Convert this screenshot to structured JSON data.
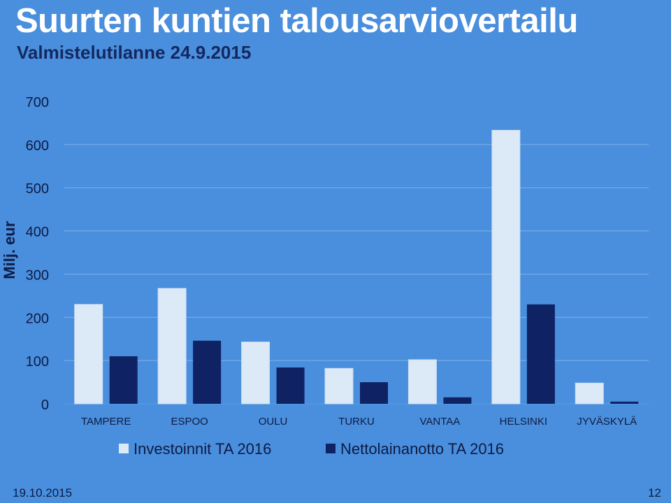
{
  "header": {
    "title": "Suurten kuntien talousarviovertailu",
    "subtitle": "Valmistelutilanne 24.9.2015"
  },
  "footer": {
    "date": "19.10.2015",
    "page": "12"
  },
  "colors": {
    "background": "#4A8FDD",
    "investointi": "#DCE9F7",
    "nettolaina": "#0F2263",
    "gridline": "#7FB0E6",
    "title": "#FFFFFF",
    "subtitle": "#14285F",
    "axis_text": "#0D1B45"
  },
  "chart_data": {
    "type": "bar",
    "categories": [
      "TAMPERE",
      "ESPOO",
      "OULU",
      "TURKU",
      "VANTAA",
      "HELSINKI",
      "JYVÄSKYLÄ"
    ],
    "series": [
      {
        "name": "Investoinnit TA 2016",
        "values": [
          230,
          267,
          143,
          82,
          102,
          633,
          48
        ]
      },
      {
        "name": "Nettolainanotto TA 2016",
        "values": [
          110,
          146,
          84,
          50,
          15,
          230,
          5
        ]
      }
    ],
    "ylabel": "Milj. eur",
    "ylim": [
      0,
      700
    ],
    "yticks": [
      0,
      100,
      200,
      300,
      400,
      500,
      600,
      700
    ],
    "grid": true,
    "legend": "bottom"
  }
}
